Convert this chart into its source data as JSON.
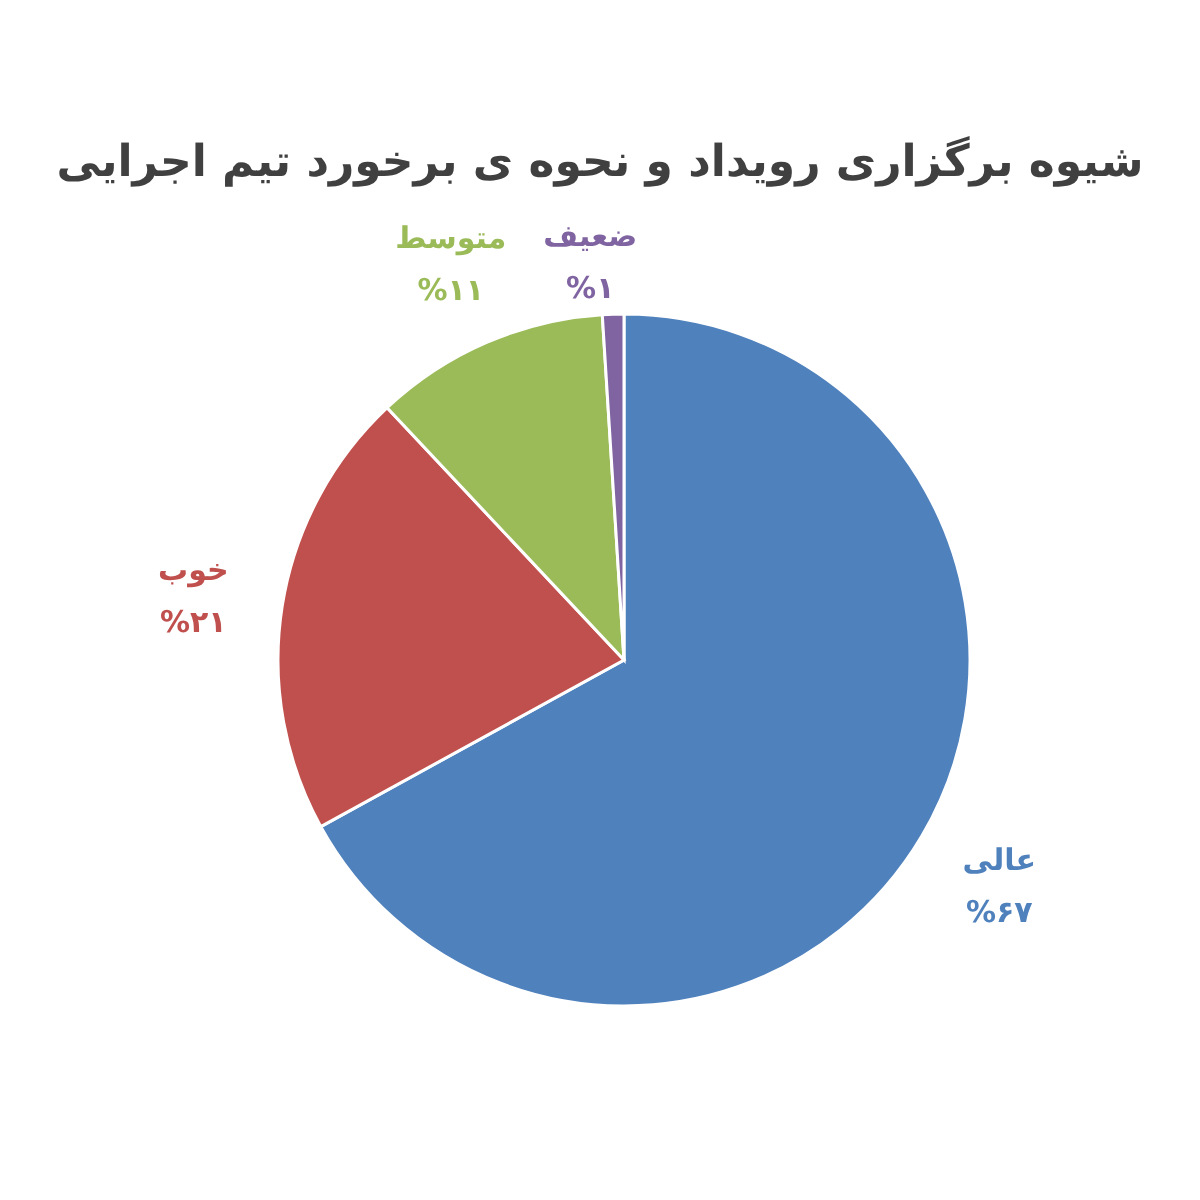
{
  "chart_data": {
    "type": "pie",
    "title": "شیوه برگزاری رویداد و نحوه ی برخورد تیم اجرایی",
    "categories": [
      "عالی",
      "خوب",
      "متوسط",
      "ضعیف"
    ],
    "values": [
      67,
      21,
      11,
      1
    ],
    "value_labels": [
      "%۶۷",
      "%۲۱",
      "%۱۱",
      "%۱"
    ],
    "colors": [
      "#4f81bd",
      "#c0504d",
      "#9bbb59",
      "#8064a2"
    ]
  }
}
